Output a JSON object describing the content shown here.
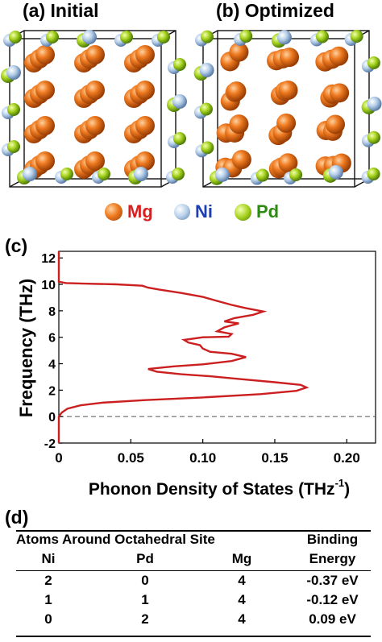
{
  "panel_a": {
    "label": "(a) Initial"
  },
  "panel_b": {
    "label": "(b) Optimized"
  },
  "legend": [
    {
      "symbol": "Mg",
      "color": "#e8731a"
    },
    {
      "symbol": "Ni",
      "color": "#a9c6e6"
    },
    {
      "symbol": "Pd",
      "color": "#9ac81e"
    }
  ],
  "panel_c": {
    "label": "(c)"
  },
  "chart_data": {
    "type": "line",
    "xlabel": "Phonon Density of States (THz",
    "xlabel_sup": "-1",
    "xlabel_tail": ")",
    "ylabel": "Frequency (THz)",
    "xlim": [
      0,
      0.22
    ],
    "ylim": [
      -2,
      12.5
    ],
    "xticks": [
      "0",
      "0.05",
      "0.10",
      "0.15",
      "0.20"
    ],
    "xtick_values": [
      0,
      0.05,
      0.1,
      0.15,
      0.2
    ],
    "yticks": [
      "-2",
      "0",
      "2",
      "4",
      "6",
      "8",
      "10",
      "12"
    ],
    "ytick_values": [
      -2,
      0,
      2,
      4,
      6,
      8,
      10,
      12
    ],
    "zero_line": "dashed",
    "series": [
      {
        "color": "#cc1f1f",
        "points": [
          [
            0,
            -2
          ],
          [
            0,
            0
          ],
          [
            0.002,
            0.3
          ],
          [
            0.006,
            0.6
          ],
          [
            0.015,
            0.85
          ],
          [
            0.03,
            1.05
          ],
          [
            0.06,
            1.25
          ],
          [
            0.1,
            1.45
          ],
          [
            0.14,
            1.7
          ],
          [
            0.165,
            1.95
          ],
          [
            0.172,
            2.2
          ],
          [
            0.168,
            2.4
          ],
          [
            0.15,
            2.6
          ],
          [
            0.125,
            2.85
          ],
          [
            0.105,
            3.05
          ],
          [
            0.085,
            3.2
          ],
          [
            0.068,
            3.4
          ],
          [
            0.062,
            3.6
          ],
          [
            0.08,
            3.8
          ],
          [
            0.1,
            3.95
          ],
          [
            0.12,
            4.2
          ],
          [
            0.13,
            4.5
          ],
          [
            0.12,
            4.75
          ],
          [
            0.105,
            4.9
          ],
          [
            0.1,
            5.15
          ],
          [
            0.098,
            5.4
          ],
          [
            0.09,
            5.6
          ],
          [
            0.087,
            5.8
          ],
          [
            0.1,
            6.0
          ],
          [
            0.118,
            6.05
          ],
          [
            0.12,
            6.25
          ],
          [
            0.11,
            6.45
          ],
          [
            0.115,
            6.75
          ],
          [
            0.125,
            7.05
          ],
          [
            0.115,
            7.2
          ],
          [
            0.122,
            7.45
          ],
          [
            0.135,
            7.7
          ],
          [
            0.142,
            7.95
          ],
          [
            0.13,
            8.2
          ],
          [
            0.12,
            8.45
          ],
          [
            0.11,
            8.75
          ],
          [
            0.1,
            9.05
          ],
          [
            0.085,
            9.35
          ],
          [
            0.07,
            9.6
          ],
          [
            0.062,
            9.75
          ],
          [
            0.058,
            9.9
          ],
          [
            0.04,
            10.0
          ],
          [
            0.02,
            10.05
          ],
          [
            0.005,
            10.1
          ],
          [
            0,
            10.2
          ],
          [
            0,
            12.5
          ]
        ]
      }
    ]
  },
  "panel_d": {
    "label": "(d)",
    "group_header": "Atoms Around Octahedral Site",
    "binding_header_1": "Binding",
    "binding_header_2": "Energy",
    "columns": [
      "Ni",
      "Pd",
      "Mg"
    ],
    "rows": [
      {
        "ni": "2",
        "pd": "0",
        "mg": "4",
        "energy": "-0.37 eV"
      },
      {
        "ni": "1",
        "pd": "1",
        "mg": "4",
        "energy": "-0.12 eV"
      },
      {
        "ni": "0",
        "pd": "2",
        "mg": "4",
        "energy": "0.09 eV"
      }
    ]
  }
}
